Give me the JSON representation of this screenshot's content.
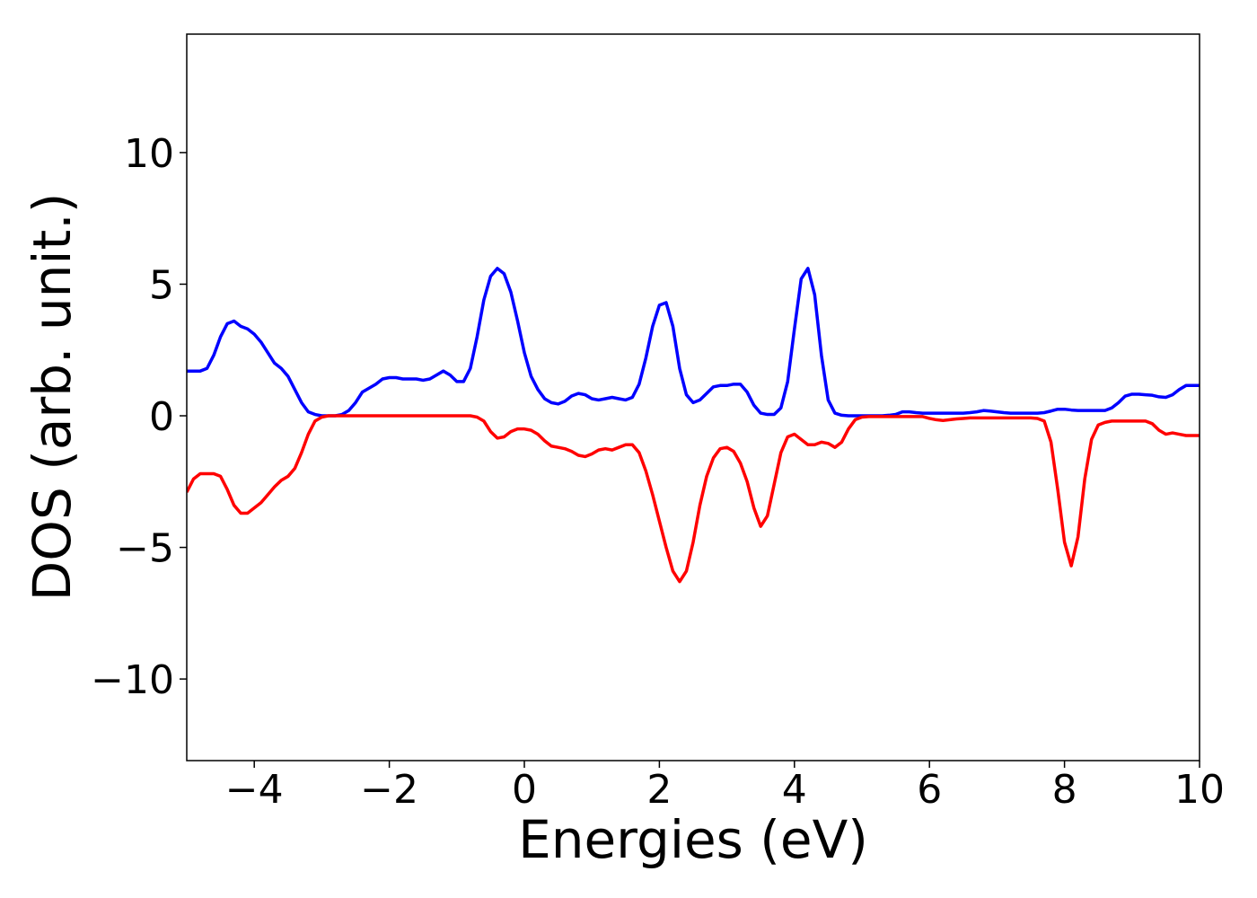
{
  "chart_data": {
    "type": "line",
    "xlabel": "Energies (eV)",
    "ylabel": "DOS (arb. unit.)",
    "x": [
      -5,
      -4.9,
      -4.8,
      -4.7,
      -4.6,
      -4.5,
      -4.4,
      -4.3,
      -4.2,
      -4.1,
      -4,
      -3.9,
      -3.8,
      -3.7,
      -3.6,
      -3.5,
      -3.4,
      -3.3,
      -3.2,
      -3.1,
      -3,
      -2.9,
      -2.8,
      -2.7,
      -2.6,
      -2.5,
      -2.4,
      -2.3,
      -2.2,
      -2.1,
      -2,
      -1.9,
      -1.8,
      -1.7,
      -1.6,
      -1.5,
      -1.4,
      -1.3,
      -1.2,
      -1.1,
      -1,
      -0.9,
      -0.8,
      -0.7,
      -0.6,
      -0.5,
      -0.4,
      -0.3,
      -0.2,
      -0.1,
      0,
      0.1,
      0.2,
      0.3,
      0.4,
      0.5,
      0.6,
      0.7,
      0.8,
      0.9,
      1,
      1.1,
      1.2,
      1.3,
      1.4,
      1.5,
      1.6,
      1.7,
      1.8,
      1.9,
      2,
      2.1,
      2.2,
      2.3,
      2.4,
      2.5,
      2.6,
      2.7,
      2.8,
      2.9,
      3,
      3.1,
      3.2,
      3.3,
      3.4,
      3.5,
      3.6,
      3.7,
      3.8,
      3.9,
      4,
      4.1,
      4.2,
      4.3,
      4.4,
      4.5,
      4.6,
      4.7,
      4.8,
      4.9,
      5,
      5.1,
      5.2,
      5.3,
      5.4,
      5.5,
      5.6,
      5.7,
      5.8,
      5.9,
      6,
      6.1,
      6.2,
      6.3,
      6.4,
      6.5,
      6.6,
      6.7,
      6.8,
      6.9,
      7,
      7.1,
      7.2,
      7.3,
      7.4,
      7.5,
      7.6,
      7.7,
      7.8,
      7.9,
      8,
      8.1,
      8.2,
      8.3,
      8.4,
      8.5,
      8.6,
      8.7,
      8.8,
      8.9,
      9,
      9.1,
      9.2,
      9.3,
      9.4,
      9.5,
      9.6,
      9.7,
      9.8,
      9.9,
      10
    ],
    "series": [
      {
        "color": "#0000ff",
        "values": [
          1.7,
          1.7,
          1.7,
          1.8,
          2.3,
          3.0,
          3.5,
          3.6,
          3.4,
          3.3,
          3.1,
          2.8,
          2.4,
          2.0,
          1.8,
          1.5,
          1.0,
          0.5,
          0.15,
          0.05,
          0,
          0,
          0,
          0.05,
          0.2,
          0.5,
          0.9,
          1.05,
          1.2,
          1.4,
          1.45,
          1.45,
          1.4,
          1.4,
          1.4,
          1.35,
          1.4,
          1.55,
          1.7,
          1.55,
          1.3,
          1.3,
          1.8,
          3.0,
          4.4,
          5.3,
          5.6,
          5.4,
          4.7,
          3.6,
          2.4,
          1.5,
          1.0,
          0.65,
          0.5,
          0.45,
          0.55,
          0.75,
          0.85,
          0.8,
          0.65,
          0.6,
          0.65,
          0.7,
          0.65,
          0.6,
          0.7,
          1.2,
          2.2,
          3.4,
          4.2,
          4.3,
          3.4,
          1.8,
          0.8,
          0.5,
          0.6,
          0.85,
          1.1,
          1.15,
          1.15,
          1.2,
          1.2,
          0.9,
          0.4,
          0.1,
          0.05,
          0.05,
          0.3,
          1.3,
          3.3,
          5.2,
          5.6,
          4.6,
          2.3,
          0.6,
          0.1,
          0.02,
          0,
          0,
          0,
          0,
          0,
          0,
          0.02,
          0.05,
          0.15,
          0.15,
          0.12,
          0.1,
          0.1,
          0.1,
          0.1,
          0.1,
          0.1,
          0.1,
          0.12,
          0.15,
          0.2,
          0.18,
          0.15,
          0.12,
          0.1,
          0.1,
          0.1,
          0.1,
          0.1,
          0.12,
          0.18,
          0.25,
          0.25,
          0.22,
          0.2,
          0.2,
          0.2,
          0.2,
          0.2,
          0.3,
          0.5,
          0.75,
          0.82,
          0.82,
          0.8,
          0.78,
          0.72,
          0.7,
          0.8,
          1.0,
          1.15,
          1.15,
          1.15
        ]
      },
      {
        "color": "#ff0000",
        "values": [
          -2.9,
          -2.4,
          -2.2,
          -2.2,
          -2.2,
          -2.3,
          -2.8,
          -3.4,
          -3.7,
          -3.7,
          -3.5,
          -3.3,
          -3.0,
          -2.7,
          -2.45,
          -2.3,
          -2.0,
          -1.4,
          -0.7,
          -0.2,
          -0.05,
          0,
          0,
          0,
          0,
          0,
          0,
          0,
          0,
          0,
          0,
          0,
          0,
          0,
          0,
          0,
          0,
          0,
          0,
          0,
          0,
          0,
          0,
          -0.05,
          -0.2,
          -0.6,
          -0.85,
          -0.8,
          -0.6,
          -0.5,
          -0.5,
          -0.55,
          -0.7,
          -0.95,
          -1.15,
          -1.2,
          -1.25,
          -1.35,
          -1.5,
          -1.55,
          -1.45,
          -1.3,
          -1.25,
          -1.3,
          -1.2,
          -1.1,
          -1.1,
          -1.4,
          -2.1,
          -3.0,
          -4.0,
          -5.0,
          -5.9,
          -6.3,
          -5.9,
          -4.8,
          -3.4,
          -2.3,
          -1.6,
          -1.25,
          -1.2,
          -1.35,
          -1.8,
          -2.5,
          -3.5,
          -4.2,
          -3.8,
          -2.6,
          -1.4,
          -0.8,
          -0.7,
          -0.9,
          -1.1,
          -1.1,
          -1.0,
          -1.05,
          -1.2,
          -1.0,
          -0.5,
          -0.15,
          -0.05,
          -0.03,
          -0.03,
          -0.03,
          -0.03,
          -0.03,
          -0.03,
          -0.03,
          -0.03,
          -0.03,
          -0.1,
          -0.15,
          -0.18,
          -0.15,
          -0.12,
          -0.1,
          -0.08,
          -0.08,
          -0.08,
          -0.08,
          -0.08,
          -0.08,
          -0.08,
          -0.08,
          -0.08,
          -0.08,
          -0.1,
          -0.2,
          -1.0,
          -2.8,
          -4.8,
          -5.7,
          -4.6,
          -2.4,
          -0.9,
          -0.35,
          -0.25,
          -0.2,
          -0.2,
          -0.2,
          -0.2,
          -0.2,
          -0.2,
          -0.3,
          -0.55,
          -0.7,
          -0.65,
          -0.7,
          -0.75,
          -0.75,
          -0.75
        ]
      }
    ],
    "xlim": [
      -5,
      10
    ],
    "ylim": [
      -13.1,
      14.5
    ],
    "xticks": [
      {
        "value": -4,
        "label": "−4"
      },
      {
        "value": -2,
        "label": "−2"
      },
      0,
      2,
      4,
      6,
      8,
      10
    ],
    "yticks": [
      {
        "value": -10,
        "label": "−10"
      },
      {
        "value": -5,
        "label": "−5"
      },
      0,
      5,
      10
    ],
    "grid": false
  }
}
